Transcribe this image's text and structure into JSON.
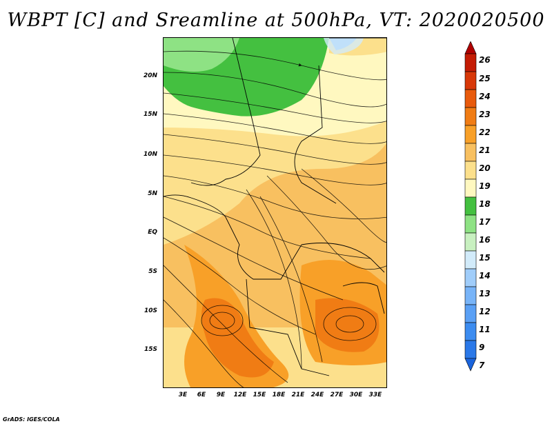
{
  "title": "WBPT [C] and Sreamline at 500hPa, VT: 2020020500",
  "footer": "GrADS: IGES/COLA",
  "map": {
    "lat_labels": [
      "20N",
      "15N",
      "10N",
      "5N",
      "EQ",
      "5S",
      "10S",
      "15S"
    ],
    "lon_labels": [
      "3E",
      "6E",
      "9E",
      "12E",
      "15E",
      "18E",
      "21E",
      "24E",
      "27E",
      "30E",
      "33E"
    ]
  },
  "colorbar": {
    "labels": [
      "7",
      "9",
      "11",
      "12",
      "13",
      "14",
      "15",
      "16",
      "17",
      "18",
      "19",
      "20",
      "21",
      "22",
      "23",
      "24",
      "25",
      "26"
    ],
    "colors": [
      "#1a64dc",
      "#2a78e8",
      "#3c8cf0",
      "#5aa0f5",
      "#78b4f8",
      "#a0cdfa",
      "#d2ebfa",
      "#c8f0c0",
      "#8ee284",
      "#44c040",
      "#fff8c0",
      "#fce08c",
      "#f8c060",
      "#f8a028",
      "#f07c14",
      "#e85a0c",
      "#d83808",
      "#c41c04",
      "#b00000"
    ]
  }
}
